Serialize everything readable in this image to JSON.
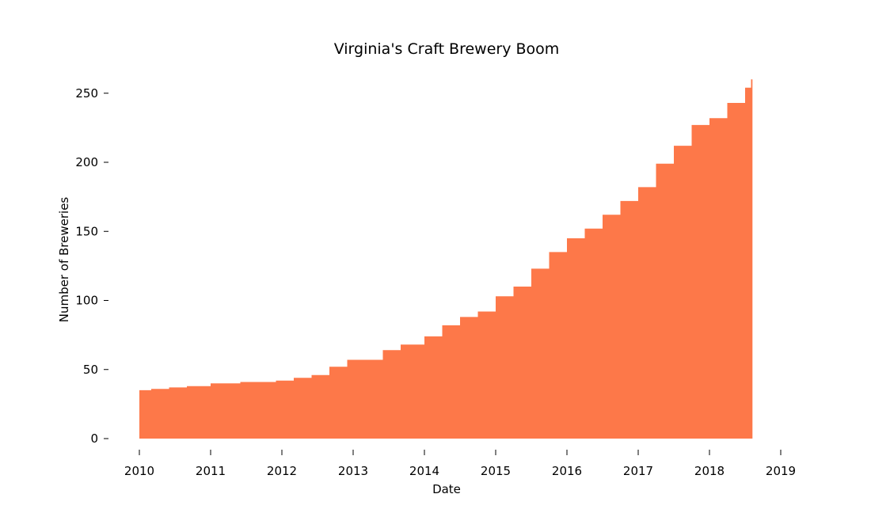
{
  "chart_data": {
    "type": "area",
    "title": "Virginia's Craft Brewery Boom",
    "xlabel": "Date",
    "ylabel": "Number of Breweries",
    "xlim": [
      2010.0,
      2019.0
    ],
    "ylim": [
      0,
      260
    ],
    "x_ticks": [
      "2010",
      "2011",
      "2012",
      "2013",
      "2014",
      "2015",
      "2016",
      "2017",
      "2018",
      "2019"
    ],
    "y_ticks": [
      "0",
      "50",
      "100",
      "150",
      "200",
      "250"
    ],
    "grid": false,
    "fill_color": "#fd7849",
    "series": [
      {
        "x": [
          "2010-01",
          "2010-03",
          "2010-06",
          "2010-09",
          "2011-01",
          "2011-06",
          "2011-12",
          "2012-03",
          "2012-06",
          "2012-09",
          "2012-12",
          "2013-03",
          "2013-06",
          "2013-09",
          "2014-01",
          "2014-04",
          "2014-07",
          "2014-10",
          "2015-01",
          "2015-04",
          "2015-07",
          "2015-10",
          "2016-01",
          "2016-04",
          "2016-07",
          "2016-10",
          "2017-01",
          "2017-04",
          "2017-07",
          "2017-10",
          "2018-01",
          "2018-04",
          "2018-07",
          "2018-08"
        ],
        "y": [
          35,
          36,
          37,
          38,
          40,
          41,
          42,
          44,
          46,
          52,
          57,
          57,
          64,
          68,
          74,
          82,
          88,
          92,
          103,
          110,
          123,
          135,
          145,
          152,
          162,
          172,
          182,
          199,
          212,
          227,
          232,
          243,
          254,
          260
        ]
      }
    ]
  }
}
